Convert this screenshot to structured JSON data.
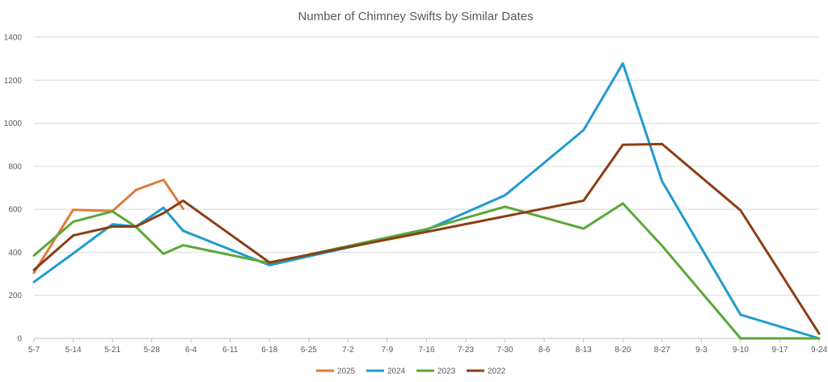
{
  "chart_data": {
    "type": "line",
    "title": "Number of Chimney Swifts by Similar Dates",
    "xlabel": "",
    "ylabel": "",
    "ylim": [
      0,
      1400
    ],
    "yticks": [
      0,
      200,
      400,
      600,
      800,
      1000,
      1200,
      1400
    ],
    "grid": true,
    "legend_position": "bottom",
    "categories": [
      "5-7",
      "5-14",
      "5-21",
      "5-28",
      "6-4",
      "6-11",
      "6-18",
      "6-25",
      "7-2",
      "7-9",
      "7-16",
      "7-23",
      "7-30",
      "8-6",
      "8-13",
      "8-20",
      "8-27",
      "9-3",
      "9-10",
      "9-17",
      "9-24"
    ],
    "series": [
      {
        "name": "2025",
        "color": "#E07B39",
        "points": [
          [
            0,
            305
          ],
          [
            1,
            598
          ],
          [
            2,
            592
          ],
          [
            2.6,
            690
          ],
          [
            3.3,
            737
          ],
          [
            3.8,
            602
          ]
        ]
      },
      {
        "name": "2024",
        "color": "#1F9BCF",
        "points": [
          [
            0,
            262
          ],
          [
            1,
            395
          ],
          [
            2,
            530
          ],
          [
            2.6,
            520
          ],
          [
            3.3,
            607
          ],
          [
            3.8,
            500
          ],
          [
            6,
            340
          ],
          [
            10,
            505
          ],
          [
            12,
            665
          ],
          [
            14,
            968
          ],
          [
            15,
            1278
          ],
          [
            16,
            730
          ],
          [
            18,
            110
          ],
          [
            20,
            0
          ]
        ]
      },
      {
        "name": "2023",
        "color": "#5BA83A",
        "points": [
          [
            0,
            385
          ],
          [
            1,
            542
          ],
          [
            2,
            590
          ],
          [
            2.6,
            518
          ],
          [
            3.3,
            393
          ],
          [
            3.8,
            433
          ],
          [
            6,
            350
          ],
          [
            10,
            508
          ],
          [
            12,
            612
          ],
          [
            14,
            510
          ],
          [
            15,
            627
          ],
          [
            16,
            430
          ],
          [
            18,
            0
          ],
          [
            20,
            0
          ]
        ]
      },
      {
        "name": "2022",
        "color": "#8B3E14",
        "points": [
          [
            0,
            318
          ],
          [
            1,
            478
          ],
          [
            2,
            520
          ],
          [
            2.6,
            520
          ],
          [
            3.3,
            582
          ],
          [
            3.8,
            640
          ],
          [
            6,
            353
          ],
          [
            10,
            495
          ],
          [
            14,
            640
          ],
          [
            15,
            900
          ],
          [
            16,
            903
          ],
          [
            18,
            595
          ],
          [
            20,
            22
          ]
        ]
      }
    ]
  }
}
